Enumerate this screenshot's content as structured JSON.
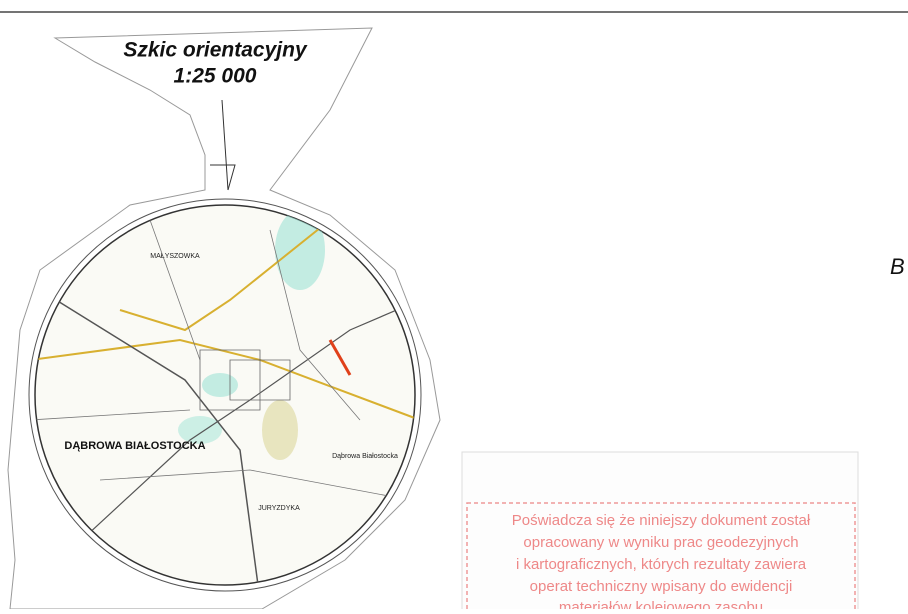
{
  "sketch": {
    "title": "Szkic orientacyjny",
    "scale": "1:25 000",
    "places": [
      "MAŁYSZOWKA",
      "DĄBROWA BIAŁOSTOCKA",
      "JURYZDYKA",
      "Dąbrowa Białostocka"
    ]
  },
  "side_letter": "B",
  "stamp": {
    "lines": [
      "Poświadcza się że niniejszy dokument został",
      "opracowany w wyniku prac geodezyjnych",
      "i kartograficznych, których rezultaty zawiera",
      "operat techniczny wpisany do ewidencji",
      "materiałów kolejowego zasobu"
    ]
  }
}
